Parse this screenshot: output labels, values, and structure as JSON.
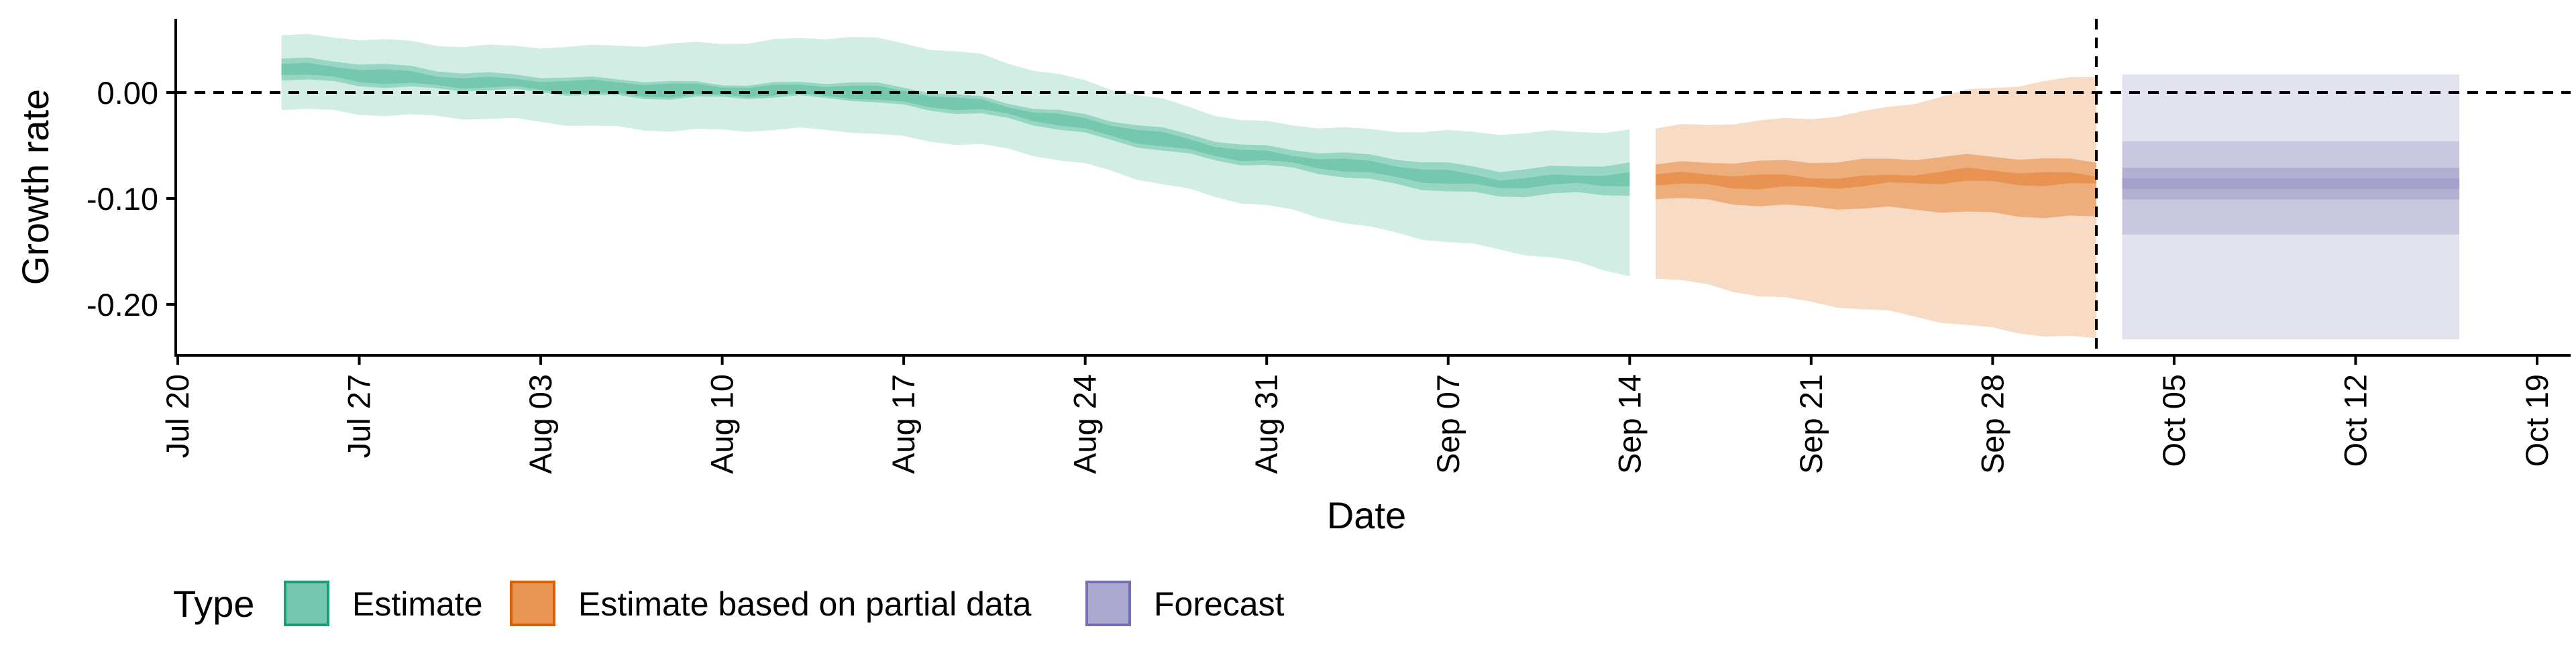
{
  "chart_data": {
    "type": "area",
    "xlabel": "Date",
    "ylabel": "Growth rate",
    "x_ticks": [
      "Jul 20",
      "Jul 27",
      "Aug 03",
      "Aug 10",
      "Aug 17",
      "Aug 24",
      "Aug 31",
      "Sep 07",
      "Sep 14",
      "Sep 21",
      "Sep 28",
      "Oct 05",
      "Oct 12",
      "Oct 19"
    ],
    "x_range": [
      "2020-07-20",
      "2020-10-19"
    ],
    "y_ticks": [
      0.0,
      -0.1,
      -0.2
    ],
    "y_tick_labels": [
      "0.00",
      "-0.10",
      "-0.20"
    ],
    "ylim": [
      -0.245,
      0.07
    ],
    "reference_line_y": 0.0,
    "forecast_start_line": "2020-10-02",
    "grid": false,
    "legend": {
      "title": "Type",
      "position": "bottom-left",
      "entries": [
        "Estimate",
        "Estimate based on partial data",
        "Forecast"
      ]
    },
    "colors": {
      "Estimate": "#66c2a5",
      "Estimate based on partial data": "#e6883f",
      "Forecast": "#9e9ac8",
      "Estimate_border": "#1b9e77",
      "Estimate based on partial data_border": "#d95f02",
      "Forecast_border": "#7570b3"
    },
    "series": [
      {
        "name": "Estimate",
        "x": [
          "2020-07-24",
          "2020-07-30",
          "2020-08-05",
          "2020-08-10",
          "2020-08-15",
          "2020-08-20",
          "2020-08-25",
          "2020-08-30",
          "2020-09-04",
          "2020-09-09",
          "2020-09-14"
        ],
        "median": [
          0.022,
          0.012,
          0.004,
          0.002,
          0.001,
          -0.012,
          -0.036,
          -0.058,
          -0.072,
          -0.085,
          -0.082
        ],
        "lower_50": [
          0.012,
          0.004,
          -0.003,
          -0.005,
          -0.006,
          -0.021,
          -0.045,
          -0.067,
          -0.083,
          -0.098,
          -0.096
        ],
        "upper_50": [
          0.032,
          0.022,
          0.012,
          0.009,
          0.009,
          -0.004,
          -0.027,
          -0.048,
          -0.061,
          -0.072,
          -0.068
        ],
        "lower_90": [
          -0.016,
          -0.022,
          -0.032,
          -0.036,
          -0.036,
          -0.05,
          -0.074,
          -0.103,
          -0.128,
          -0.148,
          -0.172
        ],
        "upper_90": [
          0.054,
          0.046,
          0.042,
          0.048,
          0.052,
          0.036,
          0.003,
          -0.025,
          -0.037,
          -0.037,
          -0.037
        ]
      },
      {
        "name": "Estimate based on partial data",
        "x": [
          "2020-09-15",
          "2020-09-19",
          "2020-09-23",
          "2020-09-27",
          "2020-10-02"
        ],
        "median": [
          -0.082,
          -0.084,
          -0.084,
          -0.079,
          -0.082
        ],
        "lower_50": [
          -0.1,
          -0.105,
          -0.11,
          -0.113,
          -0.118
        ],
        "upper_50": [
          -0.068,
          -0.066,
          -0.063,
          -0.061,
          -0.064
        ],
        "lower_90": [
          -0.175,
          -0.19,
          -0.205,
          -0.22,
          -0.233
        ],
        "upper_90": [
          -0.034,
          -0.028,
          -0.018,
          0.0,
          0.017
        ]
      },
      {
        "name": "Forecast",
        "x": [
          "2020-10-03",
          "2020-10-16"
        ],
        "median": [
          -0.086,
          -0.086
        ],
        "lower_50": [
          -0.101,
          -0.101
        ],
        "upper_50": [
          -0.071,
          -0.071
        ],
        "lower_lighter": [
          -0.134,
          -0.134
        ],
        "upper_lighter": [
          -0.046,
          -0.046
        ],
        "lower_90": [
          -0.233,
          -0.233
        ],
        "upper_90": [
          0.017,
          0.017
        ]
      }
    ]
  }
}
